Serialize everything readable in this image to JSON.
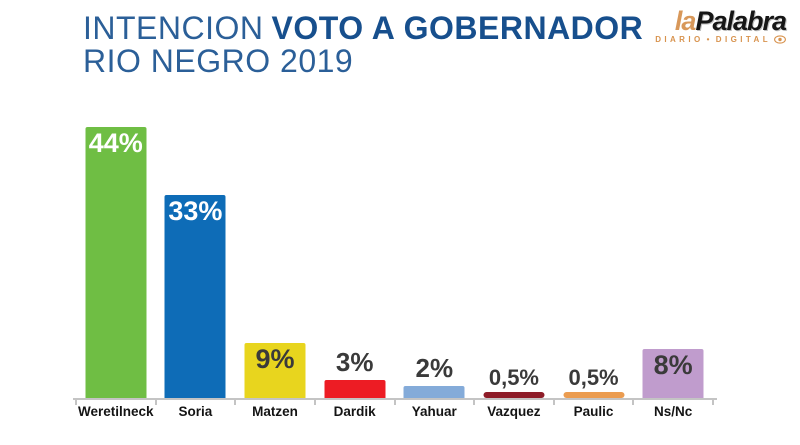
{
  "header": {
    "title_light": "INTENCION",
    "title_bold": "VOTO A GOBERNADOR",
    "title_line2": "RIO NEGRO 2019"
  },
  "logo": {
    "name_first": "la",
    "name_rest": "Palabra",
    "tagline_word1": "DIARIO",
    "tagline_sep": "•",
    "tagline_word2": "DIGITAL"
  },
  "colors": {
    "title_blue": "#1b5493",
    "logo_orange": "#d8934e",
    "logo_black": "#161616",
    "axis_gray": "#c4c4c4",
    "category_label": "#141414",
    "value_label_dark": "#3a3a3a",
    "value_label_light": "#ffffff",
    "background": "#ffffff"
  },
  "chart_data": {
    "type": "bar",
    "title": "INTENCION VOTO A GOBERNADOR RIO NEGRO 2019",
    "categories": [
      "Weretilneck",
      "Soria",
      "Matzen",
      "Dardik",
      "Yahuar",
      "Vazquez",
      "Paulic",
      "Ns/Nc"
    ],
    "values": [
      44,
      33,
      9,
      3,
      2,
      0.5,
      0.5,
      8
    ],
    "value_labels": [
      "44%",
      "33%",
      "9%",
      "3%",
      "2%",
      "0,5%",
      "0,5%",
      "8%"
    ],
    "bar_colors": [
      "#6fbe44",
      "#0e6cb7",
      "#e8d51e",
      "#ed1c24",
      "#84abd9",
      "#8e1c28",
      "#eb9c50",
      "#c09ccd"
    ],
    "value_label_inside": [
      true,
      true,
      true,
      false,
      false,
      false,
      false,
      true
    ],
    "value_label_colors": [
      "#ffffff",
      "#ffffff",
      "#3a3a3a",
      "#3a3a3a",
      "#3a3a3a",
      "#3a3a3a",
      "#3a3a3a",
      "#3a3a3a"
    ],
    "xlabel": "",
    "ylabel": "",
    "ylim": [
      0,
      48
    ],
    "grid": false,
    "legend": "none"
  }
}
